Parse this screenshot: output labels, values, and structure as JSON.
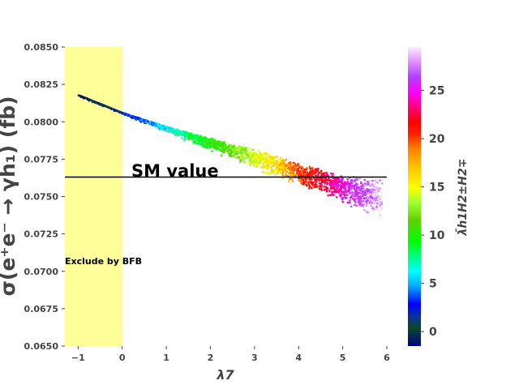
{
  "chart_data": {
    "type": "scatter",
    "title": "",
    "xlabel": "λ7",
    "ylabel": "σ(e⁺e⁻ → γh₁) (fb)",
    "xlim": [
      -1.3,
      6.0
    ],
    "ylim": [
      0.065,
      0.085
    ],
    "x_ticks": [
      -1,
      0,
      1,
      2,
      3,
      4,
      5,
      6
    ],
    "y_ticks": [
      0.065,
      0.0675,
      0.07,
      0.0725,
      0.075,
      0.0775,
      0.08,
      0.0825,
      0.085
    ],
    "x_tick_labels": [
      "−1",
      "0",
      "1",
      "2",
      "3",
      "4",
      "5",
      "6"
    ],
    "y_tick_labels": [
      "0.0650",
      "0.0675",
      "0.0700",
      "0.0725",
      "0.0750",
      "0.0775",
      "0.0800",
      "0.0825",
      "0.0850"
    ],
    "colorbar": {
      "label": "λ̄h1H2±H2∓",
      "range": [
        -1.5,
        29.5
      ],
      "ticks": [
        0,
        5,
        10,
        15,
        20,
        25
      ],
      "tick_labels": [
        "0",
        "5",
        "10",
        "15",
        "20",
        "25"
      ],
      "colormap": "gist_ncar"
    },
    "series": [
      {
        "kind": "scatter-band",
        "color_by": "colorbar value",
        "center_line": [
          [
            -1.0,
            0.0818
          ],
          [
            0.0,
            0.0806
          ],
          [
            1.0,
            0.0796
          ],
          [
            2.0,
            0.0786
          ],
          [
            3.0,
            0.0777
          ],
          [
            4.0,
            0.0766
          ],
          [
            5.0,
            0.0757
          ],
          [
            5.9,
            0.0749
          ]
        ],
        "lower_edge": [
          [
            -1.0,
            0.0817
          ],
          [
            0.0,
            0.0805
          ],
          [
            1.0,
            0.0793
          ],
          [
            2.0,
            0.078
          ],
          [
            3.0,
            0.0768
          ],
          [
            4.0,
            0.0757
          ],
          [
            5.0,
            0.0745
          ],
          [
            5.9,
            0.0735
          ]
        ],
        "upper_edge": [
          [
            -1.0,
            0.0818
          ],
          [
            0.0,
            0.0806
          ],
          [
            1.0,
            0.0797
          ],
          [
            2.0,
            0.0789
          ],
          [
            3.0,
            0.0782
          ],
          [
            4.0,
            0.0773
          ],
          [
            5.0,
            0.0765
          ],
          [
            5.9,
            0.0762
          ]
        ],
        "color_at_x": [
          [
            -1.0,
            -1
          ],
          [
            -0.5,
            0
          ],
          [
            0.0,
            2
          ],
          [
            0.5,
            4
          ],
          [
            1.0,
            6
          ],
          [
            1.5,
            8.5
          ],
          [
            2.0,
            10
          ],
          [
            2.5,
            12
          ],
          [
            3.0,
            14
          ],
          [
            3.5,
            16
          ],
          [
            4.0,
            20
          ],
          [
            4.5,
            22
          ],
          [
            5.0,
            25
          ],
          [
            5.5,
            27
          ],
          [
            5.9,
            29
          ]
        ]
      }
    ],
    "reference_line": {
      "label": "SM value",
      "y": 0.0763,
      "x_range": [
        -1.3,
        6.0
      ]
    },
    "excluded_region": {
      "label": "Exclude by BFB",
      "x_range": [
        -1.3,
        0.0
      ],
      "color": "#ffff99"
    },
    "legend": "none",
    "grid": false
  }
}
